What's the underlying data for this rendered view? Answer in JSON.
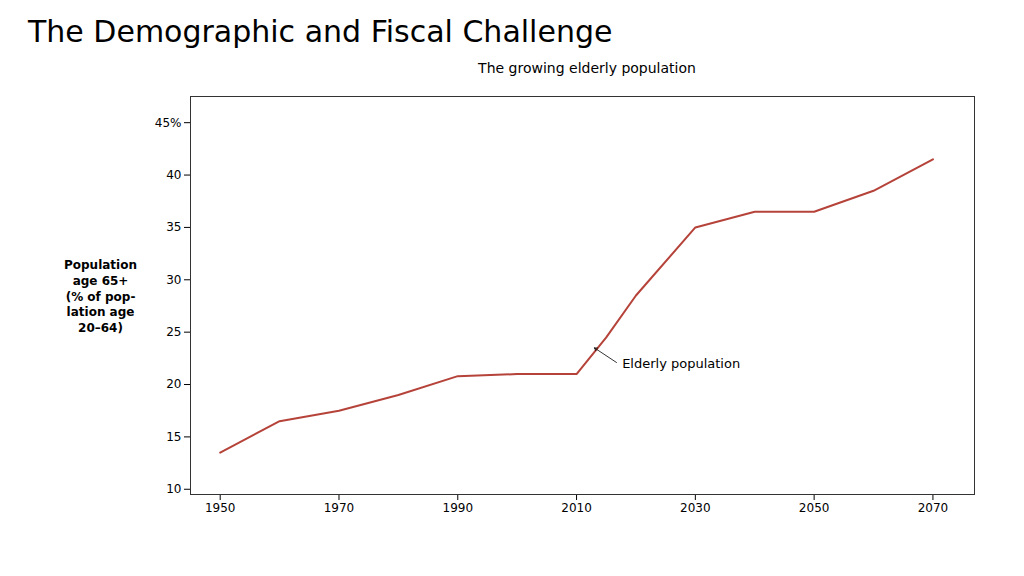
{
  "chart_data": {
    "type": "line",
    "title": "The Demographic and Fiscal Challenge",
    "subtitle": "The growing elderly population",
    "ylabel": "Population\nage 65+\n(% of pop-\nlation age\n20–64)",
    "x": [
      1950,
      1960,
      1970,
      1980,
      1990,
      2000,
      2010,
      2015,
      2020,
      2030,
      2040,
      2050,
      2060,
      2070
    ],
    "values": [
      13.5,
      16.5,
      17.5,
      19.0,
      20.8,
      21.0,
      21.0,
      24.5,
      28.5,
      35.0,
      36.5,
      36.5,
      38.5,
      41.5
    ],
    "color": "#b5433a",
    "xlim": [
      1945,
      2077
    ],
    "ylim": [
      9.5,
      47.5
    ],
    "xticks": [
      1950,
      1970,
      1990,
      2010,
      2030,
      2050,
      2070
    ],
    "yticks": [
      10,
      15,
      20,
      25,
      30,
      35,
      40,
      {
        "value": 45,
        "label": "45%"
      }
    ],
    "annotations": [
      {
        "text": "Elderly population",
        "x": 2017,
        "y": 22.0,
        "arrow_to": [
          2013,
          23.5
        ]
      }
    ]
  }
}
